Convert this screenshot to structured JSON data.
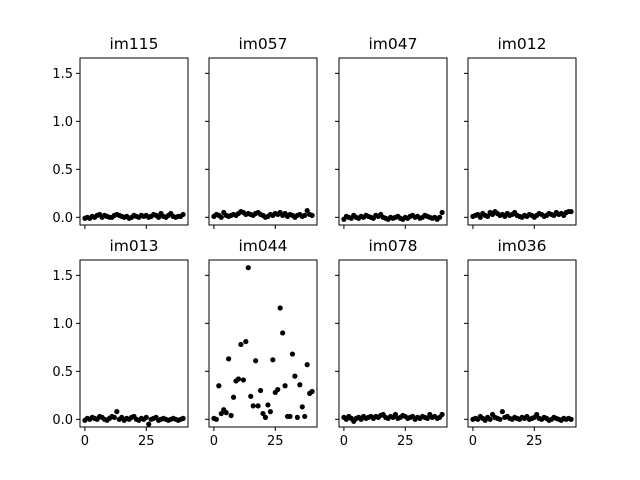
{
  "chart_data": [
    {
      "type": "scatter",
      "title": "im115",
      "ylim": [
        -0.08,
        1.66
      ],
      "xlim": [
        -2,
        42
      ],
      "yticks": [
        0.0,
        0.5,
        1.0,
        1.5
      ],
      "xticks": [
        0,
        25
      ],
      "show_yticklabels": true,
      "show_xticklabels": false,
      "marker_color": "#000000",
      "series": [
        {
          "x": [
            0,
            1,
            2,
            3,
            4,
            5,
            6,
            7,
            8,
            9,
            10,
            11,
            12,
            13,
            14,
            15,
            16,
            17,
            18,
            19,
            20,
            21,
            22,
            23,
            24,
            25,
            26,
            27,
            28,
            29,
            30,
            31,
            32,
            33,
            34,
            35,
            36,
            37,
            38,
            39,
            40
          ],
          "y": [
            -0.01,
            0.0,
            -0.01,
            0.01,
            0.0,
            0.02,
            0.03,
            0.0,
            0.02,
            0.01,
            0.0,
            0.0,
            0.02,
            0.03,
            0.02,
            0.01,
            0.0,
            0.01,
            -0.01,
            0.0,
            0.02,
            0.01,
            0.0,
            0.02,
            0.01,
            0.02,
            0.0,
            0.01,
            0.03,
            0.02,
            0.0,
            0.04,
            0.01,
            0.0,
            0.02,
            0.04,
            0.01,
            0.0,
            0.01,
            0.01,
            0.03
          ]
        }
      ]
    },
    {
      "type": "scatter",
      "title": "im057",
      "ylim": [
        -0.08,
        1.66
      ],
      "xlim": [
        -2,
        42
      ],
      "yticks": [
        0.0,
        0.5,
        1.0,
        1.5
      ],
      "xticks": [
        0,
        25
      ],
      "show_yticklabels": false,
      "show_xticklabels": false,
      "marker_color": "#000000",
      "series": [
        {
          "x": [
            0,
            1,
            2,
            3,
            4,
            5,
            6,
            7,
            8,
            9,
            10,
            11,
            12,
            13,
            14,
            15,
            16,
            17,
            18,
            19,
            20,
            21,
            22,
            23,
            24,
            25,
            26,
            27,
            28,
            29,
            30,
            31,
            32,
            33,
            34,
            35,
            36,
            37,
            38,
            39,
            40
          ],
          "y": [
            0.01,
            0.03,
            0.02,
            0.0,
            0.05,
            0.02,
            0.01,
            0.02,
            0.03,
            0.02,
            0.04,
            0.06,
            0.05,
            0.03,
            0.04,
            0.03,
            0.02,
            0.04,
            0.05,
            0.03,
            0.02,
            0.0,
            0.01,
            0.03,
            0.02,
            0.04,
            0.03,
            0.05,
            0.02,
            0.04,
            0.01,
            0.03,
            0.02,
            0.0,
            0.02,
            0.03,
            0.01,
            0.02,
            0.07,
            0.03,
            0.02
          ]
        }
      ]
    },
    {
      "type": "scatter",
      "title": "im047",
      "ylim": [
        -0.08,
        1.66
      ],
      "xlim": [
        -2,
        42
      ],
      "yticks": [
        0.0,
        0.5,
        1.0,
        1.5
      ],
      "xticks": [
        0,
        25
      ],
      "show_yticklabels": false,
      "show_xticklabels": false,
      "marker_color": "#000000",
      "series": [
        {
          "x": [
            0,
            1,
            2,
            3,
            4,
            5,
            6,
            7,
            8,
            9,
            10,
            11,
            12,
            13,
            14,
            15,
            16,
            17,
            18,
            19,
            20,
            21,
            22,
            23,
            24,
            25,
            26,
            27,
            28,
            29,
            30,
            31,
            32,
            33,
            34,
            35,
            36,
            37,
            38,
            39,
            40
          ],
          "y": [
            -0.02,
            0.01,
            0.0,
            -0.01,
            0.02,
            0.0,
            -0.01,
            0.01,
            0.0,
            0.02,
            0.01,
            0.0,
            -0.01,
            0.02,
            0.01,
            0.03,
            0.0,
            -0.01,
            -0.02,
            0.0,
            -0.01,
            0.0,
            0.01,
            -0.01,
            -0.02,
            0.0,
            -0.01,
            0.01,
            0.02,
            0.0,
            0.01,
            -0.01,
            0.0,
            0.02,
            0.01,
            0.0,
            -0.01,
            0.0,
            -0.02,
            0.0,
            0.05
          ]
        }
      ]
    },
    {
      "type": "scatter",
      "title": "im012",
      "ylim": [
        -0.08,
        1.66
      ],
      "xlim": [
        -2,
        42
      ],
      "yticks": [
        0.0,
        0.5,
        1.0,
        1.5
      ],
      "xticks": [
        0,
        25
      ],
      "show_yticklabels": false,
      "show_xticklabels": false,
      "marker_color": "#000000",
      "series": [
        {
          "x": [
            0,
            1,
            2,
            3,
            4,
            5,
            6,
            7,
            8,
            9,
            10,
            11,
            12,
            13,
            14,
            15,
            16,
            17,
            18,
            19,
            20,
            21,
            22,
            23,
            24,
            25,
            26,
            27,
            28,
            29,
            30,
            31,
            32,
            33,
            34,
            35,
            36,
            37,
            38,
            39,
            40
          ],
          "y": [
            0.01,
            0.02,
            0.03,
            0.0,
            0.04,
            0.02,
            0.01,
            0.05,
            0.03,
            0.06,
            0.04,
            0.02,
            0.03,
            0.01,
            0.04,
            0.02,
            0.03,
            0.05,
            0.02,
            0.01,
            0.0,
            0.02,
            0.01,
            0.03,
            0.02,
            0.0,
            0.02,
            0.04,
            0.03,
            0.01,
            0.02,
            0.04,
            0.03,
            0.02,
            0.05,
            0.03,
            0.04,
            0.02,
            0.05,
            0.06,
            0.06
          ]
        }
      ]
    },
    {
      "type": "scatter",
      "title": "im013",
      "ylim": [
        -0.08,
        1.66
      ],
      "xlim": [
        -2,
        42
      ],
      "yticks": [
        0.0,
        0.5,
        1.0,
        1.5
      ],
      "xticks": [
        0,
        25
      ],
      "show_yticklabels": true,
      "show_xticklabels": true,
      "marker_color": "#000000",
      "series": [
        {
          "x": [
            0,
            1,
            2,
            3,
            4,
            5,
            6,
            7,
            8,
            9,
            10,
            11,
            12,
            13,
            14,
            15,
            16,
            17,
            18,
            19,
            20,
            21,
            22,
            23,
            24,
            25,
            26,
            27,
            28,
            29,
            30,
            31,
            32,
            33,
            34,
            35,
            36,
            37,
            38,
            39,
            40
          ],
          "y": [
            -0.01,
            0.01,
            0.0,
            0.02,
            0.01,
            0.0,
            0.03,
            0.02,
            0.0,
            -0.01,
            0.01,
            0.03,
            0.02,
            0.08,
            0.0,
            0.02,
            -0.01,
            0.01,
            0.0,
            0.02,
            0.03,
            0.0,
            -0.01,
            0.01,
            0.0,
            0.02,
            -0.05,
            0.0,
            0.01,
            0.02,
            -0.01,
            0.0,
            0.01,
            0.0,
            -0.01,
            0.0,
            0.01,
            0.0,
            -0.01,
            0.0,
            0.01
          ]
        }
      ]
    },
    {
      "type": "scatter",
      "title": "im044",
      "ylim": [
        -0.08,
        1.66
      ],
      "xlim": [
        -2,
        42
      ],
      "yticks": [
        0.0,
        0.5,
        1.0,
        1.5
      ],
      "xticks": [
        0,
        25
      ],
      "show_yticklabels": false,
      "show_xticklabels": true,
      "marker_color": "#000000",
      "series": [
        {
          "x": [
            0,
            1,
            2,
            3,
            4,
            5,
            6,
            7,
            8,
            9,
            10,
            11,
            12,
            13,
            14,
            15,
            16,
            17,
            18,
            19,
            20,
            21,
            22,
            23,
            24,
            25,
            26,
            27,
            28,
            29,
            30,
            31,
            32,
            33,
            34,
            35,
            36,
            37,
            38,
            39,
            40
          ],
          "y": [
            0.01,
            0.0,
            0.35,
            0.06,
            0.1,
            0.07,
            0.63,
            0.04,
            0.23,
            0.4,
            0.42,
            0.78,
            0.41,
            0.81,
            1.58,
            0.24,
            0.14,
            0.61,
            0.14,
            0.3,
            0.06,
            0.02,
            0.15,
            0.08,
            0.62,
            0.28,
            0.31,
            1.16,
            0.9,
            0.35,
            0.03,
            0.03,
            0.68,
            0.45,
            0.02,
            0.36,
            0.13,
            0.03,
            0.57,
            0.27,
            0.29
          ]
        }
      ]
    },
    {
      "type": "scatter",
      "title": "im078",
      "ylim": [
        -0.08,
        1.66
      ],
      "xlim": [
        -2,
        42
      ],
      "yticks": [
        0.0,
        0.5,
        1.0,
        1.5
      ],
      "xticks": [
        0,
        25
      ],
      "show_yticklabels": false,
      "show_xticklabels": true,
      "marker_color": "#000000",
      "series": [
        {
          "x": [
            0,
            1,
            2,
            3,
            4,
            5,
            6,
            7,
            8,
            9,
            10,
            11,
            12,
            13,
            14,
            15,
            16,
            17,
            18,
            19,
            20,
            21,
            22,
            23,
            24,
            25,
            26,
            27,
            28,
            29,
            30,
            31,
            32,
            33,
            34,
            35,
            36,
            37,
            38,
            39,
            40
          ],
          "y": [
            0.02,
            0.0,
            0.03,
            0.01,
            -0.02,
            0.01,
            0.02,
            0.0,
            0.03,
            0.01,
            0.02,
            0.03,
            0.01,
            0.03,
            0.02,
            0.04,
            0.05,
            0.02,
            0.01,
            0.03,
            0.02,
            0.05,
            0.01,
            0.02,
            0.04,
            0.03,
            0.01,
            0.02,
            0.03,
            0.0,
            0.02,
            0.01,
            0.03,
            0.02,
            0.01,
            0.05,
            0.02,
            0.03,
            0.01,
            0.02,
            0.05
          ]
        }
      ]
    },
    {
      "type": "scatter",
      "title": "im036",
      "ylim": [
        -0.08,
        1.66
      ],
      "xlim": [
        -2,
        42
      ],
      "yticks": [
        0.0,
        0.5,
        1.0,
        1.5
      ],
      "xticks": [
        0,
        25
      ],
      "show_yticklabels": false,
      "show_xticklabels": true,
      "marker_color": "#000000",
      "series": [
        {
          "x": [
            0,
            1,
            2,
            3,
            4,
            5,
            6,
            7,
            8,
            9,
            10,
            11,
            12,
            13,
            14,
            15,
            16,
            17,
            18,
            19,
            20,
            21,
            22,
            23,
            24,
            25,
            26,
            27,
            28,
            29,
            30,
            31,
            32,
            33,
            34,
            35,
            36,
            37,
            38,
            39,
            40
          ],
          "y": [
            0.0,
            0.01,
            0.0,
            0.03,
            0.01,
            -0.01,
            0.02,
            0.0,
            0.05,
            0.02,
            0.01,
            0.0,
            0.08,
            0.02,
            0.03,
            0.01,
            0.0,
            0.02,
            0.01,
            0.0,
            0.02,
            0.01,
            0.03,
            0.0,
            0.01,
            0.02,
            0.05,
            0.01,
            0.0,
            0.02,
            0.01,
            -0.01,
            0.0,
            0.02,
            0.01,
            0.0,
            -0.01,
            0.01,
            0.0,
            0.01,
            0.0
          ]
        }
      ]
    }
  ]
}
